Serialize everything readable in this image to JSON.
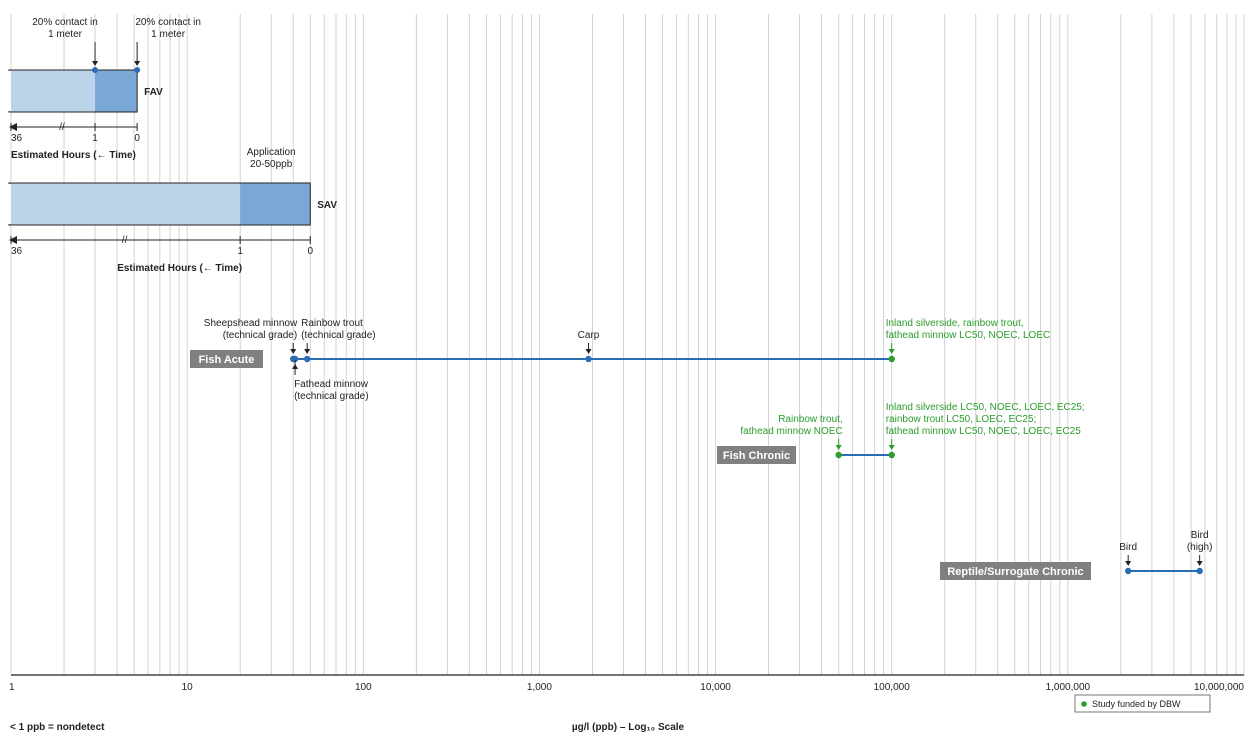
{
  "chart_data": {
    "type": "scatter",
    "scale": "log10",
    "xlim": [
      1,
      10000000
    ],
    "grid": true,
    "xlabel": "µg/l (ppb) – Log₁₀ Scale",
    "nondetect_note": "< 1 ppb = nondetect",
    "x_ticks": [
      {
        "value": 1,
        "label": "1"
      },
      {
        "value": 10,
        "label": "10"
      },
      {
        "value": 100,
        "label": "100"
      },
      {
        "value": 1000,
        "label": "1,000"
      },
      {
        "value": 10000,
        "label": "10,000"
      },
      {
        "value": 100000,
        "label": "100,000"
      },
      {
        "value": 1000000,
        "label": "1,000,000"
      },
      {
        "value": 10000000,
        "label": "10,000,000"
      }
    ],
    "exposure_bars": [
      {
        "name": "FAV",
        "x_range": [
          1,
          5.2
        ],
        "dark_start": 3,
        "time_axis_label": "Estimated Hours (← Time)",
        "time_ticks": [
          {
            "value": 1,
            "label": "36"
          },
          {
            "value": 3,
            "label": "1"
          },
          {
            "value": 5.2,
            "label": "0"
          }
        ],
        "markers": [
          {
            "x": 3,
            "label": [
              "20% contact in",
              "1 meter"
            ]
          },
          {
            "x": 5.2,
            "label": [
              "20% contact in",
              "1 meter"
            ]
          }
        ]
      },
      {
        "name": "SAV",
        "x_range": [
          1,
          50
        ],
        "dark_start": 20,
        "time_axis_label": "Estimated Hours (← Time)",
        "time_ticks": [
          {
            "value": 1,
            "label": "36"
          },
          {
            "value": 20,
            "label": "1"
          },
          {
            "value": 50,
            "label": "0"
          }
        ],
        "markers": [
          {
            "x": 30,
            "label": [
              "Application",
              "20-50ppb"
            ]
          }
        ]
      }
    ],
    "series": [
      {
        "name": "Fish Acute",
        "range": [
          40,
          100000
        ],
        "points": [
          {
            "x": 40,
            "color": "#2a6db5",
            "label": [
              "Sheepshead minnow",
              "(technical grade)"
            ],
            "label_pos": "above-left"
          },
          {
            "x": 48,
            "color": "#2a6db5",
            "label": [
              "Rainbow trout",
              "(technical grade)"
            ],
            "label_pos": "above-right"
          },
          {
            "x": 41,
            "color": "#2a6db5",
            "label": [
              "Fathead minnow",
              "(technical grade)"
            ],
            "label_pos": "below-right"
          },
          {
            "x": 1900,
            "color": "#2a6db5",
            "label": [
              "Carp"
            ],
            "label_pos": "above"
          },
          {
            "x": 100000,
            "color": "#2a9d2a",
            "label": [
              "Inland silverside, rainbow trout,",
              "fathead minnow LC50, NOEC, LOEC"
            ],
            "label_pos": "above-right"
          }
        ]
      },
      {
        "name": "Fish Chronic",
        "range": [
          50000,
          100000
        ],
        "points": [
          {
            "x": 50000,
            "color": "#2a9d2a",
            "label": [
              "Rainbow trout,",
              "fathead minnow NOEC"
            ],
            "label_pos": "above-left"
          },
          {
            "x": 100000,
            "color": "#2a9d2a",
            "label": [
              "Inland silverside LC50, NOEC, LOEC, EC25;",
              "rainbow trout LC50, LOEC, EC25;",
              "fathead minnow LC50, NOEC, LOEC, EC25"
            ],
            "label_pos": "above-right"
          }
        ]
      },
      {
        "name": "Reptile/Surrogate Chronic",
        "range": [
          2200000,
          5600000
        ],
        "points": [
          {
            "x": 2200000,
            "color": "#2a6db5",
            "label": [
              "Bird"
            ],
            "label_pos": "above"
          },
          {
            "x": 5600000,
            "color": "#2a6db5",
            "label": [
              "Bird",
              "(high)"
            ],
            "label_pos": "above"
          }
        ]
      }
    ],
    "legend": {
      "placement": "bottom-right",
      "entries": [
        {
          "label": "Study funded by DBW",
          "color": "#2a9d2a"
        }
      ]
    },
    "colors": {
      "light_band": "#bcd4ea",
      "dark_band": "#7aa8d6",
      "series_line": "#2a6db5",
      "dbw_point": "#2a9d2a",
      "label_box": "#808080",
      "grid": "#c8c8c8"
    }
  }
}
